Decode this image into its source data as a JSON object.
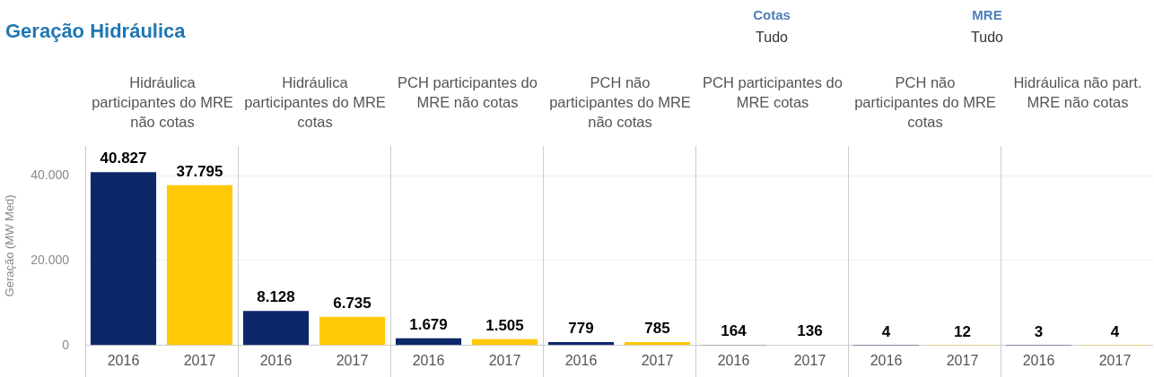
{
  "chart_data": [
    {
      "type": "bar",
      "title": "Hidráulica participantes do MRE não cotas",
      "annotations": [
        "Geração Hidráulica",
        "Cotas",
        "Tudo",
        "MRE",
        "Tudo"
      ],
      "ylabel": "Geração (MW Med)",
      "categories": [
        "2016",
        "2017"
      ],
      "values": [
        40827,
        37795
      ],
      "value_labels": [
        "40.827",
        "37.795"
      ],
      "colors": [
        "#0c2869",
        "#ffc907"
      ],
      "ylim": [
        0,
        47000
      ],
      "yticks": [
        {
          "value": 0,
          "label": "0"
        },
        {
          "value": 20000,
          "label": "20.000"
        },
        {
          "value": 40000,
          "label": "40.000"
        }
      ],
      "grid": "y"
    },
    {
      "type": "bar",
      "title": "Hidráulica participantes do MRE cotas",
      "categories": [
        "2016",
        "2017"
      ],
      "values": [
        8128,
        6735
      ],
      "value_labels": [
        "8.128",
        "6.735"
      ],
      "colors": [
        "#0c2869",
        "#ffc907"
      ],
      "ylim": [
        0,
        47000
      ],
      "yticks": [
        {
          "value": 0,
          "label": null
        },
        {
          "value": 20000,
          "label": null
        },
        {
          "value": 40000,
          "label": null
        }
      ],
      "grid": "y",
      "tick_labels": "x"
    },
    {
      "type": "bar",
      "title": "PCH participantes do MRE não cotas",
      "categories": [
        "2016",
        "2017"
      ],
      "values": [
        1679,
        1505
      ],
      "value_labels": [
        "1.679",
        "1.505"
      ],
      "colors": [
        "#0c2869",
        "#ffc907"
      ],
      "ylim": [
        0,
        47000
      ],
      "yticks": [
        {
          "value": 0,
          "label": null
        },
        {
          "value": 20000,
          "label": null
        },
        {
          "value": 40000,
          "label": null
        }
      ],
      "grid": "y",
      "tick_labels": "x"
    },
    {
      "type": "bar",
      "title": "PCH não participantes do MRE não cotas",
      "categories": [
        "2016",
        "2017"
      ],
      "values": [
        779,
        785
      ],
      "value_labels": [
        "779",
        "785"
      ],
      "colors": [
        "#0c2869",
        "#ffc907"
      ],
      "ylim": [
        0,
        47000
      ],
      "yticks": [
        {
          "value": 0,
          "label": null
        },
        {
          "value": 20000,
          "label": null
        },
        {
          "value": 40000,
          "label": null
        }
      ],
      "grid": "y",
      "tick_labels": "x"
    },
    {
      "type": "bar",
      "title": "PCH participantes do MRE cotas",
      "categories": [
        "2016",
        "2017"
      ],
      "values": [
        164,
        136
      ],
      "value_labels": [
        "164",
        "136"
      ],
      "colors": [
        "#0c2869",
        "#ffc907"
      ],
      "ylim": [
        0,
        47000
      ],
      "yticks": [
        {
          "value": 0,
          "label": null
        },
        {
          "value": 20000,
          "label": null
        },
        {
          "value": 40000,
          "label": null
        }
      ],
      "grid": "y",
      "tick_labels": "x"
    },
    {
      "type": "bar",
      "title": "PCH não participantes do MRE cotas",
      "categories": [
        "2016",
        "2017"
      ],
      "values": [
        4,
        12
      ],
      "value_labels": [
        "4",
        "12"
      ],
      "colors": [
        "#0c2869",
        "#ffc907"
      ],
      "ylim": [
        0,
        47000
      ],
      "yticks": [
        {
          "value": 0,
          "label": null
        },
        {
          "value": 20000,
          "label": null
        },
        {
          "value": 40000,
          "label": null
        }
      ],
      "grid": "y",
      "tick_labels": "x"
    },
    {
      "type": "bar",
      "title": "Hidráulica não part. MRE não cotas",
      "categories": [
        "2016",
        "2017"
      ],
      "values": [
        3,
        4
      ],
      "value_labels": [
        "3",
        "4"
      ],
      "colors": [
        "#0c2869",
        "#ffc907"
      ],
      "ylim": [
        0,
        47000
      ],
      "yticks": [
        {
          "value": 0,
          "label": null
        },
        {
          "value": 20000,
          "label": null
        },
        {
          "value": 40000,
          "label": null
        }
      ],
      "grid": "y",
      "tick_labels": "x"
    }
  ]
}
